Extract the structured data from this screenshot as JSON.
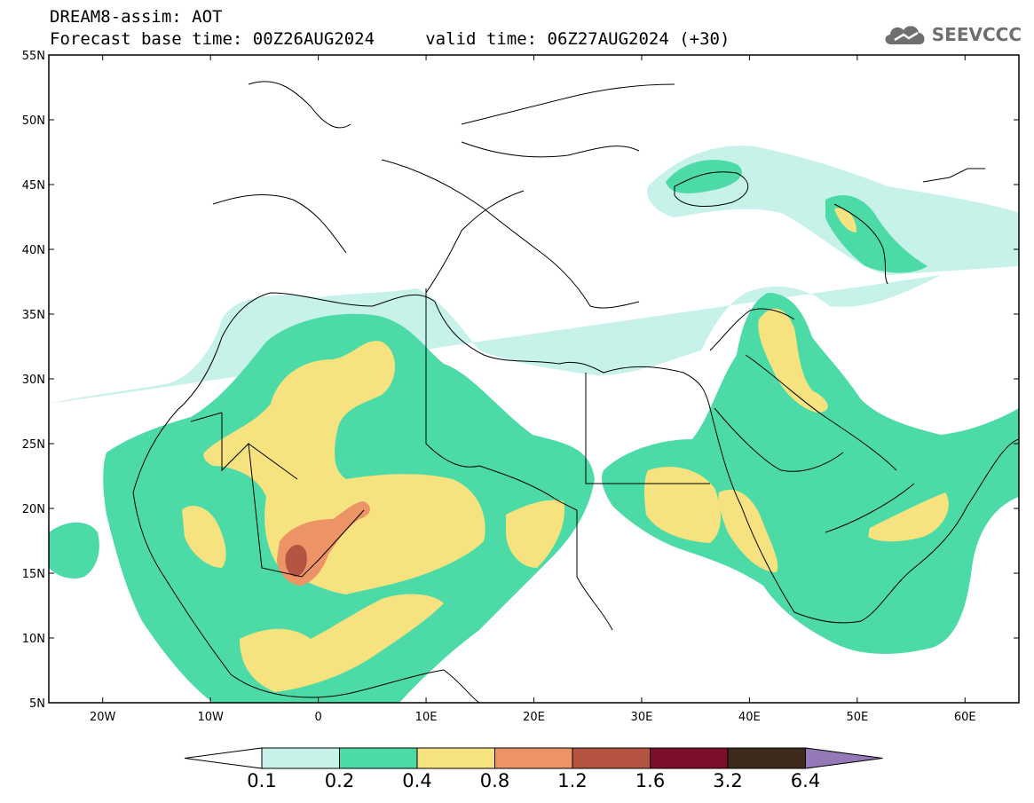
{
  "title": {
    "line1": "DREAM8-assim: AOT",
    "line2": "Forecast base time: 00Z26AUG2024     valid time: 06Z27AUG2024 (+30)"
  },
  "logo": {
    "text": "SEEVCCC",
    "icon": "cloud-logo-icon"
  },
  "map": {
    "lon_range": [
      -25,
      65
    ],
    "lat_range": [
      5,
      55
    ],
    "lat_ticks": [
      {
        "value": 55,
        "label": "55N"
      },
      {
        "value": 50,
        "label": "50N"
      },
      {
        "value": 45,
        "label": "45N"
      },
      {
        "value": 40,
        "label": "40N"
      },
      {
        "value": 35,
        "label": "35N"
      },
      {
        "value": 30,
        "label": "30N"
      },
      {
        "value": 25,
        "label": "25N"
      },
      {
        "value": 20,
        "label": "20N"
      },
      {
        "value": 15,
        "label": "15N"
      },
      {
        "value": 10,
        "label": "10N"
      },
      {
        "value": 5,
        "label": "5N"
      }
    ],
    "lon_ticks": [
      {
        "value": -20,
        "label": "20W"
      },
      {
        "value": -10,
        "label": "10W"
      },
      {
        "value": 0,
        "label": "0"
      },
      {
        "value": 10,
        "label": "10E"
      },
      {
        "value": 20,
        "label": "20E"
      },
      {
        "value": 30,
        "label": "30E"
      },
      {
        "value": 40,
        "label": "40E"
      },
      {
        "value": 50,
        "label": "50E"
      },
      {
        "value": 60,
        "label": "60E"
      }
    ]
  },
  "colorbar": {
    "colors": [
      "#c6f2ea",
      "#4cdba6",
      "#f6e27e",
      "#ec9466",
      "#b55443",
      "#7c0e2a",
      "#3d2a1b",
      "#9479b7"
    ],
    "labels": [
      "0.1",
      "0.2",
      "0.4",
      "0.8",
      "1.2",
      "1.6",
      "3.2",
      "6.4"
    ]
  }
}
